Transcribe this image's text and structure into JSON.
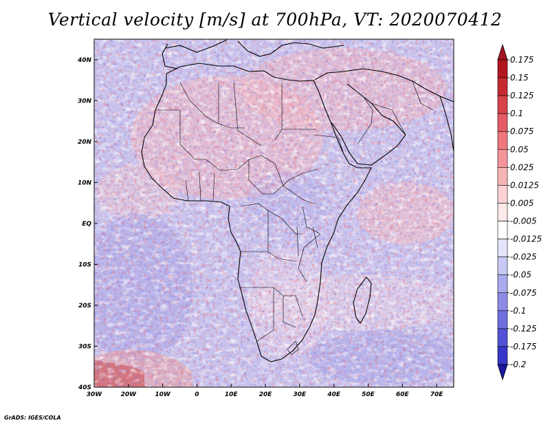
{
  "title": "Vertical velocity [m/s] at 700hPa, VT: 2020070412",
  "footer": "GrADS: IGES/COLA",
  "map": {
    "lon_range": [
      -30,
      75
    ],
    "lat_range": [
      -40,
      45
    ],
    "x_ticks": [
      {
        "lon": -30,
        "label": "30W"
      },
      {
        "lon": -20,
        "label": "20W"
      },
      {
        "lon": -10,
        "label": "10W"
      },
      {
        "lon": 0,
        "label": "0"
      },
      {
        "lon": 10,
        "label": "10E"
      },
      {
        "lon": 20,
        "label": "20E"
      },
      {
        "lon": 30,
        "label": "30E"
      },
      {
        "lon": 40,
        "label": "40E"
      },
      {
        "lon": 50,
        "label": "50E"
      },
      {
        "lon": 60,
        "label": "60E"
      },
      {
        "lon": 70,
        "label": "70E"
      }
    ],
    "y_ticks": [
      {
        "lat": -40,
        "label": "40S"
      },
      {
        "lat": -30,
        "label": "30S"
      },
      {
        "lat": -20,
        "label": "20S"
      },
      {
        "lat": -10,
        "label": "10S"
      },
      {
        "lat": 0,
        "label": "EQ"
      },
      {
        "lat": 10,
        "label": "10N"
      },
      {
        "lat": 20,
        "label": "20N"
      },
      {
        "lat": 30,
        "label": "30N"
      },
      {
        "lat": 40,
        "label": "40N"
      }
    ]
  },
  "colorbar": {
    "levels": [
      {
        "label": "0.175",
        "color": "#b3151f"
      },
      {
        "label": "0.15",
        "color": "#c62a30"
      },
      {
        "label": "0.125",
        "color": "#d8434a"
      },
      {
        "label": "0.1",
        "color": "#e45c63"
      },
      {
        "label": "0.075",
        "color": "#ee787d"
      },
      {
        "label": "0.05",
        "color": "#f39599"
      },
      {
        "label": "0.025",
        "color": "#f8b3b5"
      },
      {
        "label": "0.0125",
        "color": "#fcd2d3"
      },
      {
        "label": "0.005",
        "color": "#fee9ea"
      },
      {
        "label": "-0.005",
        "color": "#ffffff"
      },
      {
        "label": "-0.0125",
        "color": "#e4e4fb"
      },
      {
        "label": "-0.025",
        "color": "#c8c8f5"
      },
      {
        "label": "-0.05",
        "color": "#aaaaef"
      },
      {
        "label": "-0.075",
        "color": "#8c8ce8"
      },
      {
        "label": "-0.1",
        "color": "#6e6ee0"
      },
      {
        "label": "-0.125",
        "color": "#5252d6"
      },
      {
        "label": "-0.175",
        "color": "#3636c8"
      },
      {
        "label": "-0.2",
        "color": "#1f1fb4"
      }
    ],
    "top_color": "#a51220",
    "bottom_color": "#1b18a0"
  }
}
